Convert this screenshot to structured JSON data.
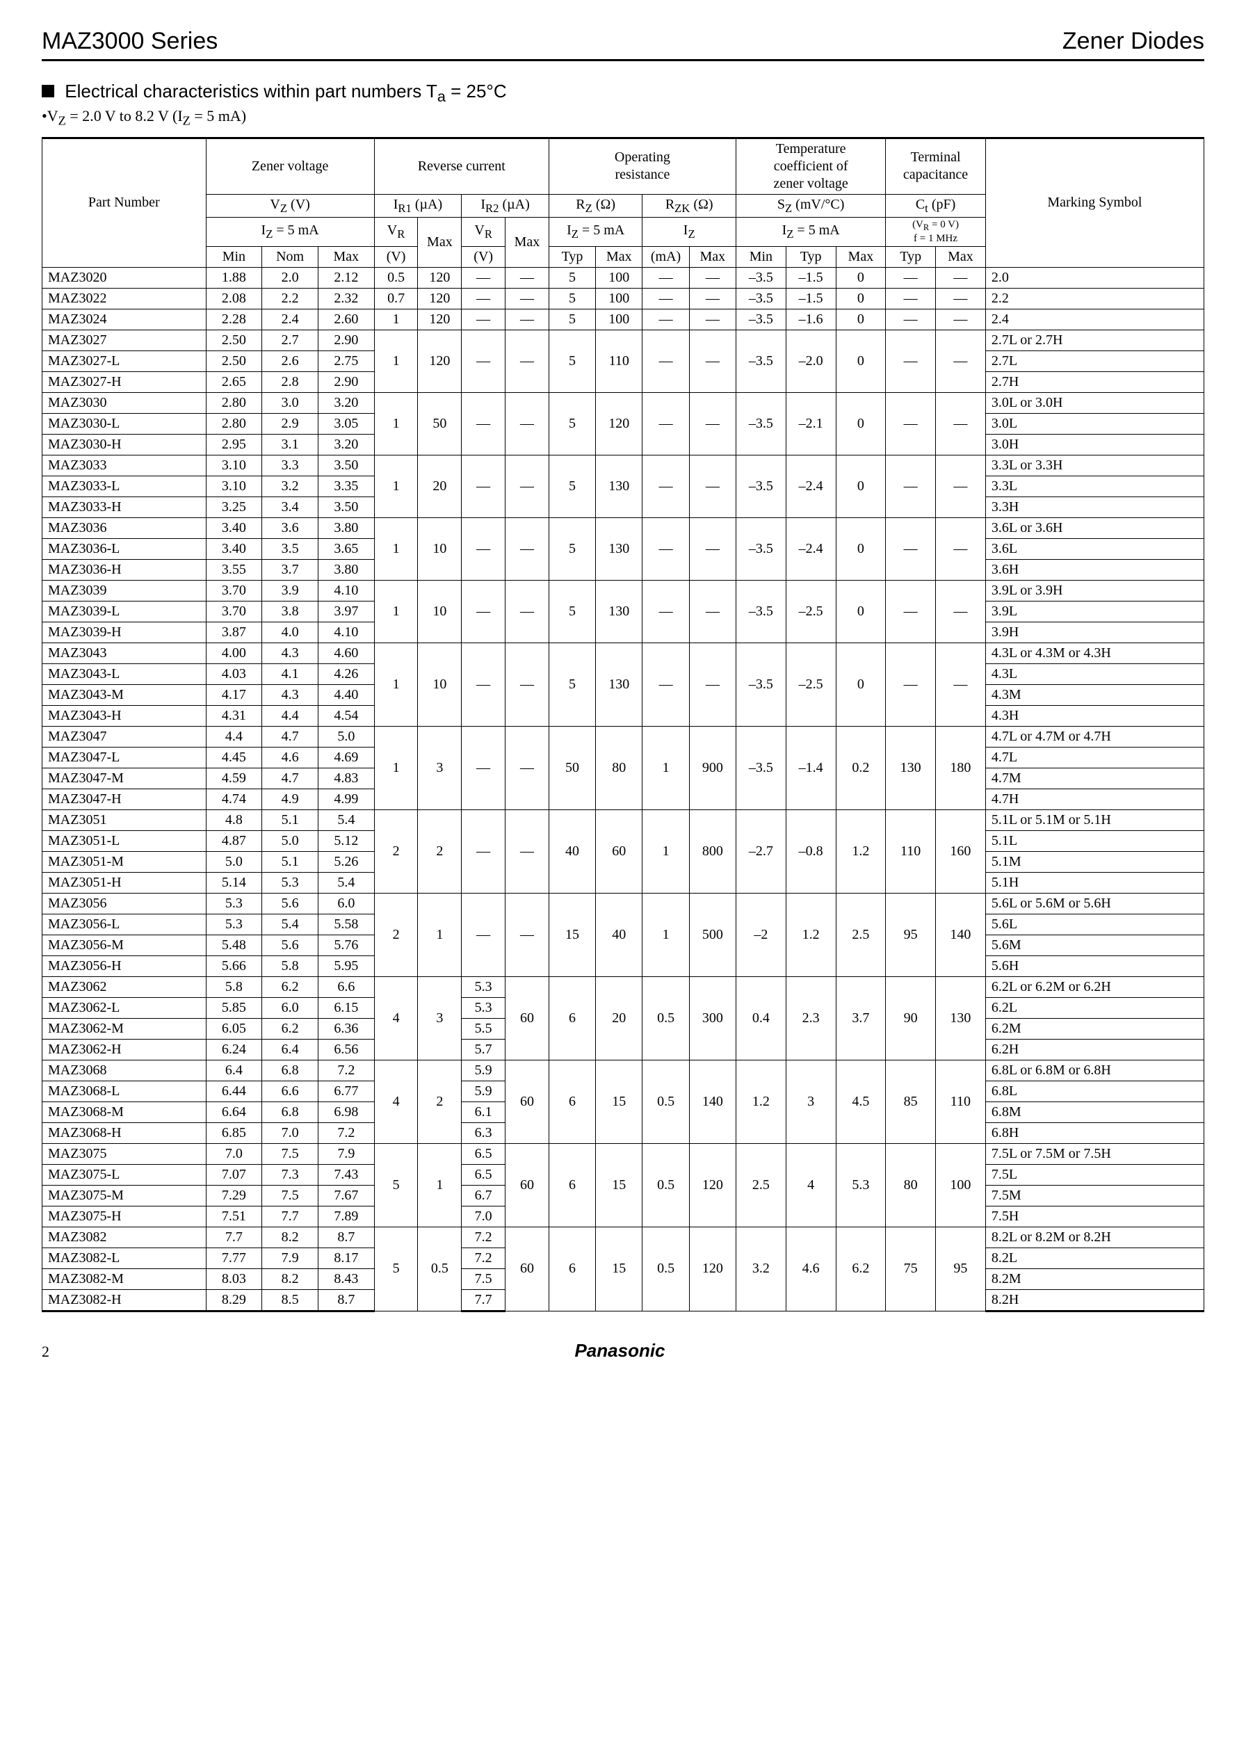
{
  "header": {
    "left": "MAZ3000 Series",
    "right": "Zener Diodes"
  },
  "section_title": "Electrical characteristics within part numbers  T",
  "section_title_sub": "a",
  "section_title_tail": " = 25°C",
  "condition": "V",
  "condition_sub": "Z",
  "condition_tail": " = 2.0 V to 8.2 V (I",
  "condition_sub2": "Z",
  "condition_tail2": " = 5 mA)",
  "thead": {
    "pn": "Part Number",
    "zener": "Zener voltage",
    "rev": "Reverse current",
    "opres": "Operating\nresistance",
    "temp": "Temperature\ncoefficient of\nzener voltage",
    "term": "Terminal\ncapacitance",
    "mark": "Marking Symbol",
    "vz": "V",
    "vz_sub": "Z",
    "vz_unit": " (V)",
    "iz5": "I",
    "iz5_sub": "Z",
    "iz5_tail": " = 5 mA",
    "ir1": "I",
    "ir1_sub": "R1",
    "ir1_unit": " (µA)",
    "ir2": "I",
    "ir2_sub": "R2",
    "ir2_unit": " (µA)",
    "vr": "V",
    "vr_sub": "R",
    "rz": "R",
    "rz_sub": "Z",
    "rz_unit": " (Ω)",
    "rzk": "R",
    "rzk_sub": "ZK",
    "rzk_unit": " (Ω)",
    "izlbl": "I",
    "izlbl_sub": "Z",
    "sz": "S",
    "sz_sub": "Z",
    "sz_unit": " (mV/°C)",
    "ct": "C",
    "ct_sub": "t",
    "ct_unit": " (pF)",
    "ctcond1": "(V",
    "ctcond1_sub": "R",
    "ctcond1_tail": " = 0 V)",
    "ctcond2": "f = 1 MHz",
    "min": "Min",
    "nom": "Nom",
    "max": "Max",
    "typ": "Typ",
    "v": "(V)",
    "ma": "(mA)"
  },
  "rows": [
    {
      "pn": "MAZ3020",
      "vz": [
        "1.88",
        "2.0",
        "2.12"
      ],
      "ir": [
        "0.5",
        "120",
        "—",
        "—"
      ],
      "rz": [
        "5",
        "100",
        "—",
        "—"
      ],
      "sz": [
        "–3.5",
        "–1.5",
        "0"
      ],
      "ct": [
        "—",
        "—"
      ],
      "ms": "2.0",
      "g": "s"
    },
    {
      "pn": "MAZ3022",
      "vz": [
        "2.08",
        "2.2",
        "2.32"
      ],
      "ir": [
        "0.7",
        "120",
        "—",
        "—"
      ],
      "rz": [
        "5",
        "100",
        "—",
        "—"
      ],
      "sz": [
        "–3.5",
        "–1.5",
        "0"
      ],
      "ct": [
        "—",
        "—"
      ],
      "ms": "2.2",
      "g": "s"
    },
    {
      "pn": "MAZ3024",
      "vz": [
        "2.28",
        "2.4",
        "2.60"
      ],
      "ir": [
        "1",
        "120",
        "—",
        "—"
      ],
      "rz": [
        "5",
        "100",
        "—",
        "—"
      ],
      "sz": [
        "–3.5",
        "–1.6",
        "0"
      ],
      "ct": [
        "—",
        "—"
      ],
      "ms": "2.4",
      "g": "s"
    },
    {
      "pn": "MAZ3027",
      "vz": [
        "2.50",
        "2.7",
        "2.90"
      ],
      "ms": "2.7L or 2.7H",
      "g": "t3",
      "shared": {
        "ir": [
          "1",
          "120",
          "—",
          "—"
        ],
        "rz": [
          "5",
          "110",
          "—",
          "—"
        ],
        "sz": [
          "–3.5",
          "–2.0",
          "0"
        ],
        "ct": [
          "—",
          "—"
        ]
      }
    },
    {
      "pn": "MAZ3027-L",
      "vz": [
        "2.50",
        "2.6",
        "2.75"
      ],
      "ms": "2.7L",
      "g": "m3"
    },
    {
      "pn": "MAZ3027-H",
      "vz": [
        "2.65",
        "2.8",
        "2.90"
      ],
      "ms": "2.7H",
      "g": "b3"
    },
    {
      "pn": "MAZ3030",
      "vz": [
        "2.80",
        "3.0",
        "3.20"
      ],
      "ms": "3.0L or 3.0H",
      "g": "t3",
      "shared": {
        "ir": [
          "1",
          "50",
          "—",
          "—"
        ],
        "rz": [
          "5",
          "120",
          "—",
          "—"
        ],
        "sz": [
          "–3.5",
          "–2.1",
          "0"
        ],
        "ct": [
          "—",
          "—"
        ]
      }
    },
    {
      "pn": "MAZ3030-L",
      "vz": [
        "2.80",
        "2.9",
        "3.05"
      ],
      "ms": "3.0L",
      "g": "m3"
    },
    {
      "pn": "MAZ3030-H",
      "vz": [
        "2.95",
        "3.1",
        "3.20"
      ],
      "ms": "3.0H",
      "g": "b3"
    },
    {
      "pn": "MAZ3033",
      "vz": [
        "3.10",
        "3.3",
        "3.50"
      ],
      "ms": "3.3L or 3.3H",
      "g": "t3",
      "shared": {
        "ir": [
          "1",
          "20",
          "—",
          "—"
        ],
        "rz": [
          "5",
          "130",
          "—",
          "—"
        ],
        "sz": [
          "–3.5",
          "–2.4",
          "0"
        ],
        "ct": [
          "—",
          "—"
        ]
      }
    },
    {
      "pn": "MAZ3033-L",
      "vz": [
        "3.10",
        "3.2",
        "3.35"
      ],
      "ms": "3.3L",
      "g": "m3"
    },
    {
      "pn": "MAZ3033-H",
      "vz": [
        "3.25",
        "3.4",
        "3.50"
      ],
      "ms": "3.3H",
      "g": "b3"
    },
    {
      "pn": "MAZ3036",
      "vz": [
        "3.40",
        "3.6",
        "3.80"
      ],
      "ms": "3.6L or 3.6H",
      "g": "t3",
      "shared": {
        "ir": [
          "1",
          "10",
          "—",
          "—"
        ],
        "rz": [
          "5",
          "130",
          "—",
          "—"
        ],
        "sz": [
          "–3.5",
          "–2.4",
          "0"
        ],
        "ct": [
          "—",
          "—"
        ]
      }
    },
    {
      "pn": "MAZ3036-L",
      "vz": [
        "3.40",
        "3.5",
        "3.65"
      ],
      "ms": "3.6L",
      "g": "m3"
    },
    {
      "pn": "MAZ3036-H",
      "vz": [
        "3.55",
        "3.7",
        "3.80"
      ],
      "ms": "3.6H",
      "g": "b3"
    },
    {
      "pn": "MAZ3039",
      "vz": [
        "3.70",
        "3.9",
        "4.10"
      ],
      "ms": "3.9L or 3.9H",
      "g": "t3",
      "shared": {
        "ir": [
          "1",
          "10",
          "—",
          "—"
        ],
        "rz": [
          "5",
          "130",
          "—",
          "—"
        ],
        "sz": [
          "–3.5",
          "–2.5",
          "0"
        ],
        "ct": [
          "—",
          "—"
        ]
      }
    },
    {
      "pn": "MAZ3039-L",
      "vz": [
        "3.70",
        "3.8",
        "3.97"
      ],
      "ms": "3.9L",
      "g": "m3"
    },
    {
      "pn": "MAZ3039-H",
      "vz": [
        "3.87",
        "4.0",
        "4.10"
      ],
      "ms": "3.9H",
      "g": "b3"
    },
    {
      "pn": "MAZ3043",
      "vz": [
        "4.00",
        "4.3",
        "4.60"
      ],
      "ms": "4.3L or 4.3M or 4.3H",
      "g": "t4",
      "shared": {
        "ir": [
          "1",
          "10",
          "—",
          "—"
        ],
        "rz": [
          "5",
          "130",
          "—",
          "—"
        ],
        "sz": [
          "–3.5",
          "–2.5",
          "0"
        ],
        "ct": [
          "—",
          "—"
        ]
      }
    },
    {
      "pn": "MAZ3043-L",
      "vz": [
        "4.03",
        "4.1",
        "4.26"
      ],
      "ms": "4.3L",
      "g": "m4"
    },
    {
      "pn": "MAZ3043-M",
      "vz": [
        "4.17",
        "4.3",
        "4.40"
      ],
      "ms": "4.3M",
      "g": "m4"
    },
    {
      "pn": "MAZ3043-H",
      "vz": [
        "4.31",
        "4.4",
        "4.54"
      ],
      "ms": "4.3H",
      "g": "b4"
    },
    {
      "pn": "MAZ3047",
      "vz": [
        "4.4",
        "4.7",
        "5.0"
      ],
      "ms": "4.7L or 4.7M or 4.7H",
      "g": "t4",
      "shared": {
        "ir": [
          "1",
          "3",
          "—",
          "—"
        ],
        "rz": [
          "50",
          "80",
          "1",
          "900"
        ],
        "sz": [
          "–3.5",
          "–1.4",
          "0.2"
        ],
        "ct": [
          "130",
          "180"
        ]
      }
    },
    {
      "pn": "MAZ3047-L",
      "vz": [
        "4.45",
        "4.6",
        "4.69"
      ],
      "ms": "4.7L",
      "g": "m4"
    },
    {
      "pn": "MAZ3047-M",
      "vz": [
        "4.59",
        "4.7",
        "4.83"
      ],
      "ms": "4.7M",
      "g": "m4"
    },
    {
      "pn": "MAZ3047-H",
      "vz": [
        "4.74",
        "4.9",
        "4.99"
      ],
      "ms": "4.7H",
      "g": "b4"
    },
    {
      "pn": "MAZ3051",
      "vz": [
        "4.8",
        "5.1",
        "5.4"
      ],
      "ms": "5.1L or 5.1M or 5.1H",
      "g": "t4",
      "shared": {
        "ir": [
          "2",
          "2",
          "—",
          "—"
        ],
        "rz": [
          "40",
          "60",
          "1",
          "800"
        ],
        "sz": [
          "–2.7",
          "–0.8",
          "1.2"
        ],
        "ct": [
          "110",
          "160"
        ]
      }
    },
    {
      "pn": "MAZ3051-L",
      "vz": [
        "4.87",
        "5.0",
        "5.12"
      ],
      "ms": "5.1L",
      "g": "m4"
    },
    {
      "pn": "MAZ3051-M",
      "vz": [
        "5.0",
        "5.1",
        "5.26"
      ],
      "ms": "5.1M",
      "g": "m4"
    },
    {
      "pn": "MAZ3051-H",
      "vz": [
        "5.14",
        "5.3",
        "5.4"
      ],
      "ms": "5.1H",
      "g": "b4"
    },
    {
      "pn": "MAZ3056",
      "vz": [
        "5.3",
        "5.6",
        "6.0"
      ],
      "ms": "5.6L or 5.6M or 5.6H",
      "g": "t4",
      "shared": {
        "ir": [
          "2",
          "1",
          "—",
          "—"
        ],
        "rz": [
          "15",
          "40",
          "1",
          "500"
        ],
        "sz": [
          "–2",
          "1.2",
          "2.5"
        ],
        "ct": [
          "95",
          "140"
        ]
      }
    },
    {
      "pn": "MAZ3056-L",
      "vz": [
        "5.3",
        "5.4",
        "5.58"
      ],
      "ms": "5.6L",
      "g": "m4"
    },
    {
      "pn": "MAZ3056-M",
      "vz": [
        "5.48",
        "5.6",
        "5.76"
      ],
      "ms": "5.6M",
      "g": "m4"
    },
    {
      "pn": "MAZ3056-H",
      "vz": [
        "5.66",
        "5.8",
        "5.95"
      ],
      "ms": "5.6H",
      "g": "b4"
    },
    {
      "pn": "MAZ3062",
      "vz": [
        "5.8",
        "6.2",
        "6.6"
      ],
      "ir2v": "5.3",
      "ms": "6.2L or 6.2M or 6.2H",
      "g": "t4v",
      "shared": {
        "ir": [
          "4",
          "3",
          "60",
          "6"
        ],
        "rz": [
          "6",
          "20",
          "0.5",
          "300"
        ],
        "sz": [
          "0.4",
          "2.3",
          "3.7"
        ],
        "ct": [
          "90",
          "130"
        ]
      }
    },
    {
      "pn": "MAZ3062-L",
      "vz": [
        "5.85",
        "6.0",
        "6.15"
      ],
      "ir2v": "5.3",
      "ms": "6.2L",
      "g": "m4v"
    },
    {
      "pn": "MAZ3062-M",
      "vz": [
        "6.05",
        "6.2",
        "6.36"
      ],
      "ir2v": "5.5",
      "ms": "6.2M",
      "g": "m4v"
    },
    {
      "pn": "MAZ3062-H",
      "vz": [
        "6.24",
        "6.4",
        "6.56"
      ],
      "ir2v": "5.7",
      "ms": "6.2H",
      "g": "b4v"
    },
    {
      "pn": "MAZ3068",
      "vz": [
        "6.4",
        "6.8",
        "7.2"
      ],
      "ir2v": "5.9",
      "ms": "6.8L or 6.8M or 6.8H",
      "g": "t4v",
      "shared": {
        "ir": [
          "4",
          "2",
          "60",
          "6"
        ],
        "rz": [
          "6",
          "15",
          "0.5",
          "140"
        ],
        "sz": [
          "1.2",
          "3",
          "4.5"
        ],
        "ct": [
          "85",
          "110"
        ]
      }
    },
    {
      "pn": "MAZ3068-L",
      "vz": [
        "6.44",
        "6.6",
        "6.77"
      ],
      "ir2v": "5.9",
      "ms": "6.8L",
      "g": "m4v"
    },
    {
      "pn": "MAZ3068-M",
      "vz": [
        "6.64",
        "6.8",
        "6.98"
      ],
      "ir2v": "6.1",
      "ms": "6.8M",
      "g": "m4v"
    },
    {
      "pn": "MAZ3068-H",
      "vz": [
        "6.85",
        "7.0",
        "7.2"
      ],
      "ir2v": "6.3",
      "ms": "6.8H",
      "g": "b4v"
    },
    {
      "pn": "MAZ3075",
      "vz": [
        "7.0",
        "7.5",
        "7.9"
      ],
      "ir2v": "6.5",
      "ms": "7.5L or 7.5M or 7.5H",
      "g": "t4v",
      "shared": {
        "ir": [
          "5",
          "1",
          "60",
          "6"
        ],
        "rz": [
          "6",
          "15",
          "0.5",
          "120"
        ],
        "sz": [
          "2.5",
          "4",
          "5.3"
        ],
        "ct": [
          "80",
          "100"
        ]
      }
    },
    {
      "pn": "MAZ3075-L",
      "vz": [
        "7.07",
        "7.3",
        "7.43"
      ],
      "ir2v": "6.5",
      "ms": "7.5L",
      "g": "m4v"
    },
    {
      "pn": "MAZ3075-M",
      "vz": [
        "7.29",
        "7.5",
        "7.67"
      ],
      "ir2v": "6.7",
      "ms": "7.5M",
      "g": "m4v"
    },
    {
      "pn": "MAZ3075-H",
      "vz": [
        "7.51",
        "7.7",
        "7.89"
      ],
      "ir2v": "7.0",
      "ms": "7.5H",
      "g": "b4v"
    },
    {
      "pn": "MAZ3082",
      "vz": [
        "7.7",
        "8.2",
        "8.7"
      ],
      "ir2v": "7.2",
      "ms": "8.2L or 8.2M or 8.2H",
      "g": "t4v",
      "shared": {
        "ir": [
          "5",
          "0.5",
          "60",
          "6"
        ],
        "rz": [
          "6",
          "15",
          "0.5",
          "120"
        ],
        "sz": [
          "3.2",
          "4.6",
          "6.2"
        ],
        "ct": [
          "75",
          "95"
        ]
      }
    },
    {
      "pn": "MAZ3082-L",
      "vz": [
        "7.77",
        "7.9",
        "8.17"
      ],
      "ir2v": "7.2",
      "ms": "8.2L",
      "g": "m4v"
    },
    {
      "pn": "MAZ3082-M",
      "vz": [
        "8.03",
        "8.2",
        "8.43"
      ],
      "ir2v": "7.5",
      "ms": "8.2M",
      "g": "m4v"
    },
    {
      "pn": "MAZ3082-H",
      "vz": [
        "8.29",
        "8.5",
        "8.7"
      ],
      "ir2v": "7.7",
      "ms": "8.2H",
      "g": "b4v"
    }
  ],
  "footer": {
    "page": "2",
    "brand": "Panasonic"
  }
}
